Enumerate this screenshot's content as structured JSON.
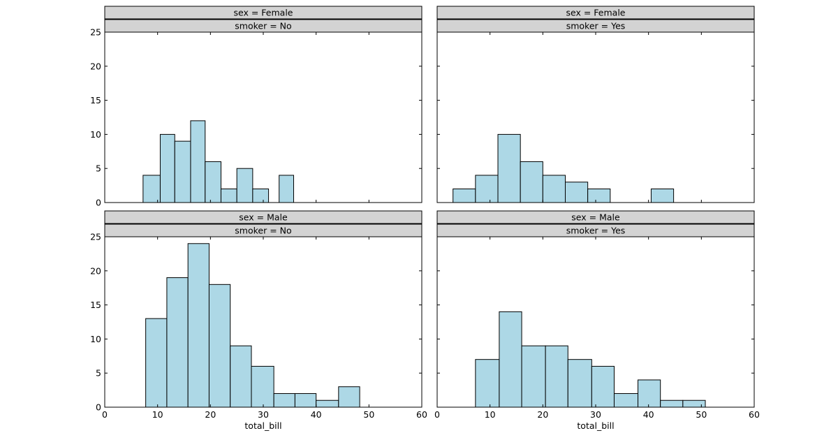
{
  "chart_data": [
    {
      "type": "bar",
      "facet_labels": [
        "sex = Female",
        "smoker = No"
      ],
      "bins": [
        [
          7.25,
          10.5
        ],
        [
          10.5,
          13.25
        ],
        [
          13.25,
          16.25
        ],
        [
          16.25,
          19
        ],
        [
          19,
          22
        ],
        [
          22,
          25
        ],
        [
          25,
          28
        ],
        [
          28,
          31
        ],
        [
          31,
          33
        ],
        [
          33,
          35.75
        ]
      ],
      "values": [
        4,
        10,
        9,
        12,
        6,
        2,
        5,
        2,
        0,
        4
      ],
      "xlim": [
        0,
        60
      ],
      "ylim": [
        0,
        25
      ],
      "x_ticks": [
        0,
        10,
        20,
        30,
        40,
        50,
        60
      ],
      "y_ticks": [
        0,
        5,
        10,
        15,
        20,
        25
      ],
      "xlabel": "",
      "ylabel": ""
    },
    {
      "type": "bar",
      "facet_labels": [
        "sex = Female",
        "smoker = Yes"
      ],
      "bins": [
        [
          3,
          7.25
        ],
        [
          7.25,
          11.5
        ],
        [
          11.5,
          15.75
        ],
        [
          15.75,
          20
        ],
        [
          20,
          24.25
        ],
        [
          24.25,
          28.5
        ],
        [
          28.5,
          32.75
        ],
        [
          32.75,
          37
        ],
        [
          37,
          40.5
        ],
        [
          40.5,
          44.75
        ]
      ],
      "values": [
        2,
        4,
        10,
        6,
        4,
        3,
        2,
        0,
        0,
        2
      ],
      "xlim": [
        0,
        60
      ],
      "ylim": [
        0,
        25
      ],
      "x_ticks": [
        0,
        10,
        20,
        30,
        40,
        50,
        60
      ],
      "y_ticks": [
        0,
        5,
        10,
        15,
        20,
        25
      ],
      "xlabel": "",
      "ylabel": ""
    },
    {
      "type": "bar",
      "facet_labels": [
        "sex = Male",
        "smoker = No"
      ],
      "bins": [
        [
          7.75,
          11.75
        ],
        [
          11.75,
          15.75
        ],
        [
          15.75,
          19.75
        ],
        [
          19.75,
          23.75
        ],
        [
          23.75,
          27.75
        ],
        [
          27.75,
          32
        ],
        [
          32,
          36
        ],
        [
          36,
          40
        ],
        [
          40,
          44.25
        ],
        [
          44.25,
          48.25
        ]
      ],
      "values": [
        13,
        19,
        24,
        18,
        9,
        6,
        2,
        2,
        1,
        3
      ],
      "xlim": [
        0,
        60
      ],
      "ylim": [
        0,
        25
      ],
      "x_ticks": [
        0,
        10,
        20,
        30,
        40,
        50,
        60
      ],
      "y_ticks": [
        0,
        5,
        10,
        15,
        20,
        25
      ],
      "xlabel": "total_bill",
      "ylabel": ""
    },
    {
      "type": "bar",
      "facet_labels": [
        "sex = Male",
        "smoker = Yes"
      ],
      "bins": [
        [
          7.25,
          11.75
        ],
        [
          11.75,
          16
        ],
        [
          16,
          20.5
        ],
        [
          20.5,
          24.75
        ],
        [
          24.75,
          29.25
        ],
        [
          29.25,
          33.5
        ],
        [
          33.5,
          38
        ],
        [
          38,
          42.25
        ],
        [
          42.25,
          46.5
        ],
        [
          46.5,
          50.75
        ]
      ],
      "values": [
        7,
        14,
        9,
        9,
        7,
        6,
        2,
        4,
        1,
        1
      ],
      "xlim": [
        0,
        60
      ],
      "ylim": [
        0,
        25
      ],
      "x_ticks": [
        0,
        10,
        20,
        30,
        40,
        50,
        60
      ],
      "y_ticks": [
        0,
        5,
        10,
        15,
        20,
        25
      ],
      "xlabel": "total_bill",
      "ylabel": ""
    }
  ],
  "style": {
    "bar_fill": "#add8e6",
    "bar_edge": "#000000",
    "header_fill": "#d3d3d3",
    "axis_color": "#000000"
  }
}
